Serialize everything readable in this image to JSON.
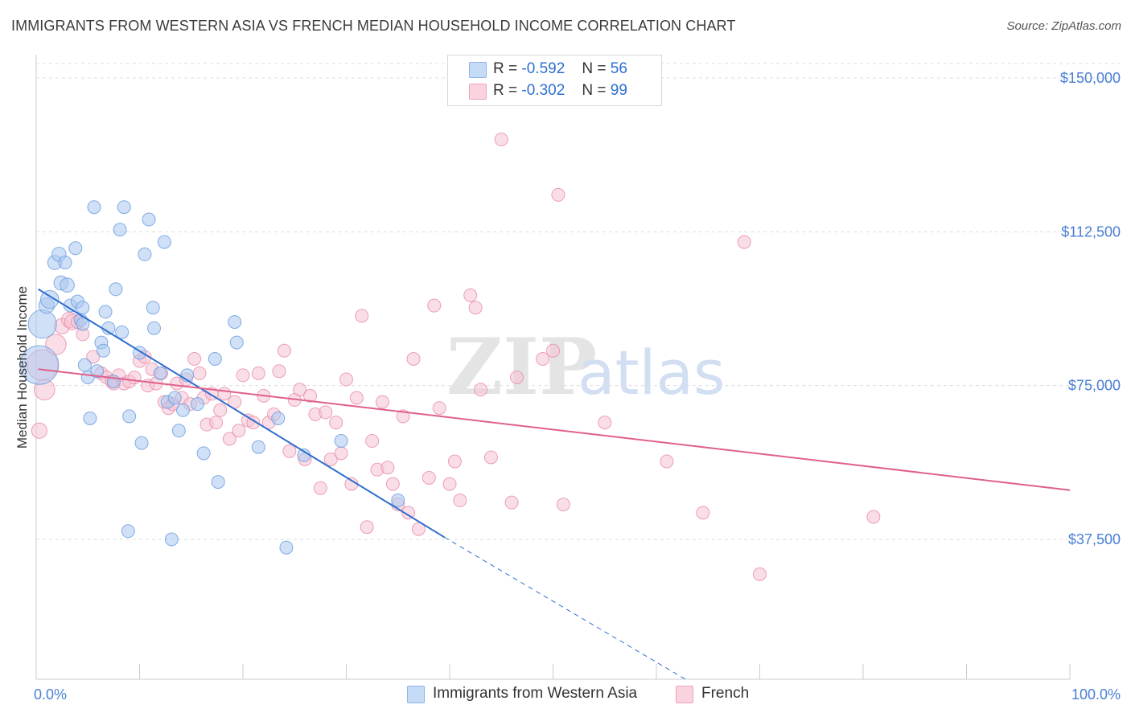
{
  "header": {
    "title": "IMMIGRANTS FROM WESTERN ASIA VS FRENCH MEDIAN HOUSEHOLD INCOME CORRELATION CHART",
    "source": "Source: ZipAtlas.com"
  },
  "watermark": {
    "zip": "ZIP",
    "atlas": "atlas"
  },
  "legend": {
    "series1": {
      "r_label": "R =",
      "r_value": "-0.592",
      "n_label": "N =",
      "n_value": "56"
    },
    "series2": {
      "r_label": "R =",
      "r_value": "-0.302",
      "n_label": "N =",
      "n_value": "99"
    }
  },
  "bottom_legend": {
    "series1_label": "Immigrants from Western Asia",
    "series2_label": "French"
  },
  "colors": {
    "series1_fill": "#a9c8f0",
    "series1_stroke": "#6f9fe0",
    "series1_line": "#2f6fd0",
    "series2_fill": "#f6c3d3",
    "series2_stroke": "#e88aa8",
    "series2_line": "#e0608a",
    "tick_label": "#4a7fd4",
    "grid": "#dddddd"
  },
  "chart_data": {
    "type": "scatter",
    "title": "IMMIGRANTS FROM WESTERN ASIA VS FRENCH MEDIAN HOUSEHOLD INCOME CORRELATION CHART",
    "xlabel": "",
    "ylabel": "Median Household Income",
    "xlim": [
      0,
      100
    ],
    "ylim": [
      0,
      155000
    ],
    "x_tick_labels": [
      "0.0%",
      "100.0%"
    ],
    "y_ticks": [
      37500,
      75000,
      112500,
      150000
    ],
    "y_tick_labels": [
      "$37,500",
      "$75,000",
      "$112,500",
      "$150,000"
    ],
    "grid": true,
    "legend_position": "top-center",
    "series": [
      {
        "name": "Immigrants from Western Asia",
        "r": -0.592,
        "n": 56,
        "trend": {
          "x0": 0.2,
          "y0": 98500,
          "x1": 39.5,
          "y1": 38000,
          "extend_to_x": 62.8,
          "extend_to_y": 0
        },
        "points": [
          [
            0.3,
            80000,
            30
          ],
          [
            0.6,
            90000,
            22
          ],
          [
            1.0,
            94500,
            12
          ],
          [
            1.3,
            96000,
            14
          ],
          [
            1.8,
            105000,
            11
          ],
          [
            2.2,
            107000,
            11
          ],
          [
            2.4,
            100000,
            11
          ],
          [
            2.8,
            105000,
            10
          ],
          [
            3.0,
            99500,
            11
          ],
          [
            3.3,
            94500,
            10
          ],
          [
            3.8,
            108500,
            10
          ],
          [
            4.0,
            95500,
            10
          ],
          [
            4.3,
            91000,
            10
          ],
          [
            4.5,
            90000,
            10
          ],
          [
            4.5,
            94000,
            10
          ],
          [
            4.7,
            80000,
            10
          ],
          [
            5.0,
            77000,
            10
          ],
          [
            5.2,
            67000,
            10
          ],
          [
            5.6,
            118500,
            10
          ],
          [
            5.9,
            78500,
            10
          ],
          [
            6.3,
            85500,
            10
          ],
          [
            6.5,
            83500,
            10
          ],
          [
            6.7,
            93000,
            10
          ],
          [
            7.0,
            89000,
            10
          ],
          [
            7.5,
            76000,
            10
          ],
          [
            7.7,
            98500,
            10
          ],
          [
            8.1,
            113000,
            10
          ],
          [
            8.3,
            88000,
            10
          ],
          [
            8.5,
            118500,
            10
          ],
          [
            8.9,
            39500,
            10
          ],
          [
            9.0,
            67500,
            10
          ],
          [
            10.0,
            83000,
            10
          ],
          [
            10.2,
            61000,
            10
          ],
          [
            10.5,
            107000,
            10
          ],
          [
            10.9,
            115500,
            10
          ],
          [
            11.3,
            94000,
            10
          ],
          [
            11.4,
            89000,
            10
          ],
          [
            12.0,
            78000,
            10
          ],
          [
            12.4,
            110000,
            10
          ],
          [
            12.7,
            71000,
            10
          ],
          [
            13.1,
            37500,
            10
          ],
          [
            13.4,
            72000,
            10
          ],
          [
            13.8,
            64000,
            10
          ],
          [
            14.2,
            69000,
            10
          ],
          [
            14.6,
            77500,
            10
          ],
          [
            15.6,
            70500,
            10
          ],
          [
            16.2,
            58500,
            10
          ],
          [
            17.3,
            81500,
            10
          ],
          [
            17.6,
            51500,
            10
          ],
          [
            19.2,
            90500,
            10
          ],
          [
            19.4,
            85500,
            10
          ],
          [
            21.5,
            60000,
            10
          ],
          [
            23.4,
            67000,
            10
          ],
          [
            24.2,
            35500,
            10
          ],
          [
            25.9,
            58000,
            10
          ],
          [
            29.5,
            61500,
            10
          ],
          [
            35.0,
            47000,
            10
          ]
        ]
      },
      {
        "name": "French",
        "r": -0.302,
        "n": 99,
        "trend": {
          "x0": 0.2,
          "y0": 79000,
          "x1": 100,
          "y1": 49500
        },
        "points": [
          [
            0.3,
            64000,
            12
          ],
          [
            0.6,
            80000,
            24
          ],
          [
            0.8,
            74000,
            16
          ],
          [
            1.9,
            85000,
            16
          ],
          [
            2.5,
            89500,
            12
          ],
          [
            3.2,
            91000,
            12
          ],
          [
            3.5,
            90500,
            12
          ],
          [
            4.0,
            90500,
            10
          ],
          [
            4.5,
            87500,
            10
          ],
          [
            5.5,
            82000,
            10
          ],
          [
            6.3,
            78000,
            10
          ],
          [
            6.8,
            77000,
            10
          ],
          [
            7.3,
            76000,
            10
          ],
          [
            7.5,
            75500,
            10
          ],
          [
            8.0,
            77500,
            10
          ],
          [
            8.5,
            75500,
            10
          ],
          [
            9.0,
            76000,
            10
          ],
          [
            9.5,
            77000,
            10
          ],
          [
            10.0,
            81000,
            10
          ],
          [
            10.5,
            82000,
            10
          ],
          [
            10.8,
            75000,
            10
          ],
          [
            11.2,
            79000,
            10
          ],
          [
            11.6,
            75500,
            10
          ],
          [
            12.1,
            78000,
            10
          ],
          [
            12.4,
            71000,
            10
          ],
          [
            12.8,
            69500,
            10
          ],
          [
            13.2,
            70500,
            10
          ],
          [
            13.6,
            75500,
            10
          ],
          [
            14.1,
            72000,
            10
          ],
          [
            14.5,
            76500,
            10
          ],
          [
            14.9,
            70500,
            10
          ],
          [
            15.3,
            81500,
            10
          ],
          [
            15.8,
            78000,
            10
          ],
          [
            16.2,
            72000,
            10
          ],
          [
            16.5,
            65500,
            10
          ],
          [
            17.0,
            73000,
            10
          ],
          [
            17.4,
            66000,
            10
          ],
          [
            17.8,
            69000,
            10
          ],
          [
            18.2,
            73000,
            10
          ],
          [
            18.7,
            62000,
            10
          ],
          [
            19.2,
            71000,
            10
          ],
          [
            19.6,
            64000,
            10
          ],
          [
            20.0,
            77500,
            10
          ],
          [
            20.5,
            66500,
            10
          ],
          [
            21.0,
            66000,
            10
          ],
          [
            21.5,
            78000,
            10
          ],
          [
            22.0,
            72500,
            10
          ],
          [
            22.5,
            66000,
            10
          ],
          [
            23.0,
            68000,
            10
          ],
          [
            23.5,
            78500,
            10
          ],
          [
            24.0,
            83500,
            10
          ],
          [
            24.5,
            59000,
            10
          ],
          [
            25.0,
            71500,
            10
          ],
          [
            25.5,
            74000,
            10
          ],
          [
            26.0,
            57000,
            10
          ],
          [
            26.5,
            72500,
            10
          ],
          [
            27.0,
            68000,
            10
          ],
          [
            27.5,
            50000,
            10
          ],
          [
            28.0,
            68500,
            10
          ],
          [
            28.5,
            57000,
            10
          ],
          [
            29.0,
            66000,
            10
          ],
          [
            29.5,
            58500,
            10
          ],
          [
            30.0,
            76500,
            10
          ],
          [
            30.5,
            51000,
            10
          ],
          [
            31.0,
            72000,
            10
          ],
          [
            31.5,
            92000,
            10
          ],
          [
            32.0,
            40500,
            10
          ],
          [
            32.5,
            61500,
            10
          ],
          [
            33.0,
            54500,
            10
          ],
          [
            33.5,
            71000,
            10
          ],
          [
            34.0,
            55000,
            10
          ],
          [
            34.5,
            51000,
            10
          ],
          [
            35.0,
            46000,
            10
          ],
          [
            35.5,
            67500,
            10
          ],
          [
            36.0,
            44000,
            10
          ],
          [
            36.5,
            81500,
            10
          ],
          [
            37.0,
            40000,
            10
          ],
          [
            38.0,
            52500,
            10
          ],
          [
            38.5,
            94500,
            10
          ],
          [
            39.0,
            69500,
            10
          ],
          [
            40.0,
            51000,
            10
          ],
          [
            40.5,
            56500,
            10
          ],
          [
            41.0,
            47000,
            10
          ],
          [
            42.0,
            97000,
            10
          ],
          [
            42.5,
            94000,
            10
          ],
          [
            43.0,
            74000,
            10
          ],
          [
            44.0,
            57500,
            10
          ],
          [
            45.0,
            135000,
            10
          ],
          [
            46.0,
            46500,
            10
          ],
          [
            46.5,
            77000,
            10
          ],
          [
            49.0,
            81500,
            10
          ],
          [
            50.0,
            83500,
            10
          ],
          [
            50.5,
            121500,
            10
          ],
          [
            51.0,
            46000,
            10
          ],
          [
            55.0,
            66000,
            10
          ],
          [
            61.0,
            56500,
            10
          ],
          [
            64.5,
            44000,
            10
          ],
          [
            68.5,
            110000,
            10
          ],
          [
            70.0,
            29000,
            10
          ],
          [
            81.0,
            43000,
            10
          ]
        ]
      }
    ]
  }
}
